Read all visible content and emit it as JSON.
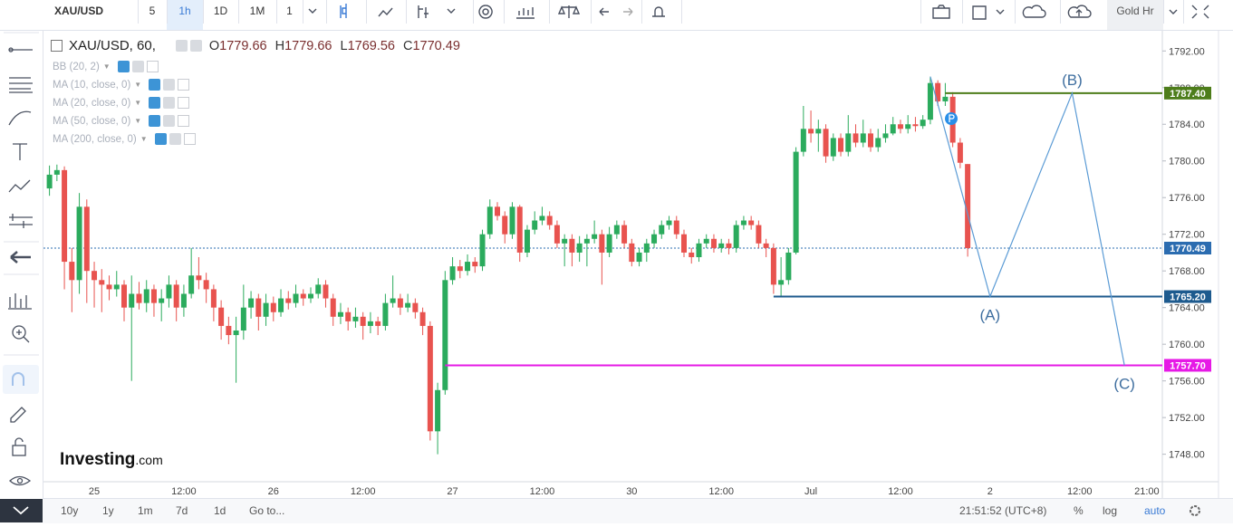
{
  "toolbar": {
    "symbol": "XAU/USD",
    "intervals": [
      "5",
      "1h",
      "1D",
      "1M",
      "1"
    ],
    "active_interval": 1,
    "layout": "Gold Hr"
  },
  "legend": {
    "title": "XAU/USD, 60,",
    "fields": [
      "O",
      "H",
      "L",
      "C"
    ],
    "indicators": [
      "BB (20, 2)",
      "MA (10, close, 0)",
      "MA (20, close, 0)",
      "MA (50, close, 0)",
      "MA (200, close, 0)"
    ]
  },
  "logo": {
    "name": "Investing",
    "suffix": ".com"
  },
  "bottom_bar": {
    "ranges": [
      "10y",
      "1y",
      "1m",
      "7d",
      "1d"
    ],
    "goto": "Go to...",
    "clock": "21:51:52 (UTC+8)",
    "options": [
      "%",
      "log",
      "auto"
    ],
    "active_option": 2
  },
  "chart_data": {
    "type": "candlestick",
    "up_color": "#2bab5d",
    "down_color": "#e8534f",
    "ylim": [
      1745,
      1794.2
    ],
    "yticks": [
      {
        "value": 1748,
        "label": "1748.00"
      },
      {
        "value": 1752,
        "label": "1752.00"
      },
      {
        "value": 1756,
        "label": "1756.00"
      },
      {
        "value": 1760,
        "label": "1760.00"
      },
      {
        "value": 1764,
        "label": "1764.00"
      },
      {
        "value": 1768,
        "label": "1768.00"
      },
      {
        "value": 1772,
        "label": "1772.00"
      },
      {
        "value": 1776,
        "label": "1776.00"
      },
      {
        "value": 1780,
        "label": "1780.00"
      },
      {
        "value": 1784,
        "label": "1784.00"
      },
      {
        "value": 1788,
        "label": "1788.00"
      },
      {
        "value": 1792,
        "label": "1792.00"
      }
    ],
    "grid": false,
    "categories": [
      null,
      null,
      null,
      null,
      null,
      null,
      "25",
      null,
      null,
      null,
      null,
      null,
      null,
      null,
      null,
      null,
      null,
      null,
      "12:00",
      null,
      null,
      null,
      null,
      null,
      null,
      null,
      null,
      null,
      null,
      null,
      "26",
      null,
      null,
      null,
      null,
      null,
      null,
      null,
      null,
      null,
      null,
      null,
      "12:00",
      null,
      null,
      null,
      null,
      null,
      null,
      null,
      null,
      null,
      null,
      null,
      "27",
      null,
      null,
      null,
      null,
      null,
      null,
      null,
      null,
      null,
      null,
      null,
      "12:00",
      null,
      null,
      null,
      null,
      null,
      null,
      null,
      null,
      null,
      null,
      null,
      "30",
      null,
      null,
      null,
      null,
      null,
      null,
      null,
      null,
      null,
      null,
      null,
      "12:00",
      null,
      null,
      null,
      null,
      null,
      null,
      null,
      null,
      null,
      null,
      null,
      "Jul",
      null,
      null,
      null,
      null,
      null,
      null,
      null,
      null,
      null,
      null,
      null,
      "12:00",
      null,
      null,
      null,
      null,
      null,
      null,
      null,
      null,
      null,
      null,
      null,
      "2",
      null,
      null,
      null,
      null,
      null,
      null,
      null,
      null,
      null,
      null,
      null,
      "12:00",
      null,
      null,
      null,
      null,
      null,
      null,
      null,
      null,
      "21:00",
      null,
      null
    ],
    "candles": [
      [
        1777.0,
        1779.5,
        1776.2,
        1778.5
      ],
      [
        1778.5,
        1779.6,
        1777.8,
        1779.0
      ],
      [
        1779.0,
        1779.4,
        1766.0,
        1769.0
      ],
      [
        1769.0,
        1770.5,
        1763.5,
        1767.0
      ],
      [
        1767.0,
        1776.5,
        1765.5,
        1775.0
      ],
      [
        1775.0,
        1775.8,
        1764.5,
        1768.0
      ],
      [
        1768.0,
        1769.0,
        1764.0,
        1767.0
      ],
      [
        1767.0,
        1768.2,
        1763.5,
        1766.5
      ],
      [
        1766.5,
        1767.5,
        1764.8,
        1766.0
      ],
      [
        1766.0,
        1768.0,
        1765.2,
        1766.5
      ],
      [
        1766.5,
        1767.0,
        1762.5,
        1764.0
      ],
      [
        1764.0,
        1767.5,
        1756.0,
        1765.5
      ],
      [
        1765.5,
        1766.8,
        1763.8,
        1764.5
      ],
      [
        1764.5,
        1767.0,
        1763.5,
        1766.0
      ],
      [
        1766.0,
        1766.5,
        1763.0,
        1764.5
      ],
      [
        1764.5,
        1766.0,
        1762.5,
        1765.0
      ],
      [
        1765.0,
        1767.5,
        1764.0,
        1766.5
      ],
      [
        1766.5,
        1767.0,
        1762.5,
        1764.0
      ],
      [
        1764.0,
        1766.5,
        1763.0,
        1765.5
      ],
      [
        1765.5,
        1770.5,
        1765.0,
        1767.5
      ],
      [
        1767.5,
        1769.5,
        1766.0,
        1767.0
      ],
      [
        1767.0,
        1767.8,
        1764.5,
        1766.0
      ],
      [
        1766.0,
        1766.5,
        1762.5,
        1764.0
      ],
      [
        1764.0,
        1764.8,
        1760.5,
        1762.0
      ],
      [
        1762.0,
        1763.0,
        1760.0,
        1761.0
      ],
      [
        1761.0,
        1763.0,
        1755.8,
        1761.5
      ],
      [
        1761.5,
        1766.5,
        1760.5,
        1764.0
      ],
      [
        1764.0,
        1765.8,
        1762.8,
        1765.0
      ],
      [
        1765.0,
        1765.5,
        1761.5,
        1763.0
      ],
      [
        1763.0,
        1765.5,
        1762.0,
        1764.5
      ],
      [
        1764.5,
        1765.2,
        1762.5,
        1763.5
      ],
      [
        1763.5,
        1766.0,
        1763.0,
        1765.0
      ],
      [
        1765.0,
        1765.8,
        1763.8,
        1764.5
      ],
      [
        1764.5,
        1766.5,
        1764.0,
        1765.5
      ],
      [
        1765.5,
        1766.0,
        1764.2,
        1765.0
      ],
      [
        1765.0,
        1766.2,
        1764.5,
        1765.5
      ],
      [
        1765.5,
        1767.2,
        1765.0,
        1766.5
      ],
      [
        1766.5,
        1767.0,
        1764.0,
        1765.0
      ],
      [
        1765.0,
        1765.5,
        1762.0,
        1763.0
      ],
      [
        1763.0,
        1764.5,
        1762.2,
        1763.5
      ],
      [
        1763.5,
        1764.0,
        1761.5,
        1762.5
      ],
      [
        1762.5,
        1764.0,
        1761.8,
        1763.0
      ],
      [
        1763.0,
        1763.5,
        1760.5,
        1762.0
      ],
      [
        1762.0,
        1763.5,
        1761.2,
        1762.5
      ],
      [
        1762.5,
        1763.0,
        1761.0,
        1762.0
      ],
      [
        1762.0,
        1765.5,
        1761.5,
        1764.5
      ],
      [
        1764.5,
        1767.5,
        1764.0,
        1765.0
      ],
      [
        1765.0,
        1765.5,
        1763.2,
        1764.0
      ],
      [
        1764.0,
        1765.5,
        1763.5,
        1764.5
      ],
      [
        1764.5,
        1765.0,
        1762.8,
        1763.5
      ],
      [
        1763.5,
        1764.0,
        1761.0,
        1762.0
      ],
      [
        1762.0,
        1762.5,
        1749.5,
        1750.5
      ],
      [
        1750.5,
        1755.8,
        1748.0,
        1755.0
      ],
      [
        1755.0,
        1768.0,
        1754.5,
        1767.0
      ],
      [
        1767.0,
        1769.5,
        1766.5,
        1768.5
      ],
      [
        1768.5,
        1769.2,
        1767.2,
        1768.0
      ],
      [
        1768.0,
        1769.8,
        1767.5,
        1769.0
      ],
      [
        1769.0,
        1769.5,
        1767.8,
        1768.5
      ],
      [
        1768.5,
        1772.5,
        1768.0,
        1772.0
      ],
      [
        1772.0,
        1775.8,
        1771.5,
        1775.0
      ],
      [
        1775.0,
        1775.5,
        1773.5,
        1774.0
      ],
      [
        1774.0,
        1774.5,
        1771.0,
        1772.0
      ],
      [
        1772.0,
        1775.5,
        1771.5,
        1775.0
      ],
      [
        1775.0,
        1775.2,
        1769.0,
        1770.0
      ],
      [
        1770.0,
        1773.0,
        1769.5,
        1772.5
      ],
      [
        1772.5,
        1774.5,
        1772.0,
        1773.5
      ],
      [
        1773.5,
        1775.0,
        1773.0,
        1774.0
      ],
      [
        1774.0,
        1774.5,
        1772.5,
        1773.0
      ],
      [
        1773.0,
        1773.5,
        1770.5,
        1771.0
      ],
      [
        1771.0,
        1772.0,
        1768.5,
        1771.5
      ],
      [
        1771.5,
        1772.0,
        1768.5,
        1770.0
      ],
      [
        1770.0,
        1771.8,
        1769.0,
        1771.0
      ],
      [
        1771.0,
        1772.0,
        1768.5,
        1771.5
      ],
      [
        1771.5,
        1773.5,
        1771.0,
        1772.0
      ],
      [
        1772.0,
        1772.5,
        1766.5,
        1770.0
      ],
      [
        1770.0,
        1772.8,
        1769.5,
        1772.0
      ],
      [
        1772.0,
        1773.5,
        1771.5,
        1773.0
      ],
      [
        1773.0,
        1773.5,
        1770.5,
        1771.0
      ],
      [
        1771.0,
        1771.5,
        1768.5,
        1769.0
      ],
      [
        1769.0,
        1770.5,
        1768.5,
        1770.0
      ],
      [
        1770.0,
        1771.5,
        1769.0,
        1771.0
      ],
      [
        1771.0,
        1772.5,
        1770.5,
        1772.0
      ],
      [
        1772.0,
        1773.5,
        1771.5,
        1773.0
      ],
      [
        1773.0,
        1774.0,
        1772.5,
        1773.5
      ],
      [
        1773.5,
        1774.0,
        1771.5,
        1772.0
      ],
      [
        1772.0,
        1772.5,
        1769.5,
        1770.0
      ],
      [
        1770.0,
        1770.5,
        1768.8,
        1769.5
      ],
      [
        1769.5,
        1771.5,
        1769.0,
        1771.0
      ],
      [
        1771.0,
        1772.0,
        1770.5,
        1771.5
      ],
      [
        1771.5,
        1772.0,
        1770.0,
        1770.5
      ],
      [
        1770.5,
        1771.5,
        1770.0,
        1771.0
      ],
      [
        1771.0,
        1771.5,
        1769.8,
        1770.5
      ],
      [
        1770.5,
        1773.5,
        1770.0,
        1773.0
      ],
      [
        1773.0,
        1774.0,
        1772.5,
        1773.5
      ],
      [
        1773.5,
        1774.0,
        1772.5,
        1773.0
      ],
      [
        1773.0,
        1773.5,
        1770.5,
        1771.0
      ],
      [
        1771.0,
        1771.5,
        1769.5,
        1770.5
      ],
      [
        1770.5,
        1771.0,
        1765.5,
        1766.5
      ],
      [
        1766.5,
        1769.5,
        1765.3,
        1767.0
      ],
      [
        1767.0,
        1770.5,
        1766.5,
        1770.0
      ],
      [
        1770.0,
        1781.5,
        1769.8,
        1781.0
      ],
      [
        1781.0,
        1786.0,
        1780.5,
        1783.5
      ],
      [
        1783.5,
        1785.5,
        1782.0,
        1783.0
      ],
      [
        1783.0,
        1784.5,
        1781.0,
        1783.5
      ],
      [
        1783.5,
        1784.0,
        1779.8,
        1780.5
      ],
      [
        1780.5,
        1783.0,
        1780.0,
        1782.5
      ],
      [
        1782.5,
        1783.0,
        1780.5,
        1781.0
      ],
      [
        1781.0,
        1785.0,
        1780.5,
        1783.0
      ],
      [
        1783.0,
        1784.0,
        1781.5,
        1782.0
      ],
      [
        1782.0,
        1784.5,
        1781.5,
        1783.0
      ],
      [
        1783.0,
        1783.5,
        1781.0,
        1781.5
      ],
      [
        1781.5,
        1783.5,
        1781.0,
        1782.5
      ],
      [
        1782.5,
        1784.0,
        1782.0,
        1783.0
      ],
      [
        1783.0,
        1784.8,
        1782.8,
        1784.0
      ],
      [
        1784.0,
        1784.5,
        1783.0,
        1783.5
      ],
      [
        1783.5,
        1785.0,
        1783.0,
        1784.0
      ],
      [
        1784.0,
        1784.8,
        1783.2,
        1783.8
      ],
      [
        1783.8,
        1785.0,
        1783.5,
        1784.5
      ],
      [
        1784.5,
        1789.2,
        1784.0,
        1788.5
      ],
      [
        1788.5,
        1788.8,
        1786.0,
        1786.5
      ],
      [
        1786.5,
        1788.5,
        1786.0,
        1787.0
      ],
      [
        1787.0,
        1787.5,
        1781.5,
        1782.0
      ],
      [
        1782.0,
        1782.5,
        1779.2,
        1779.8
      ],
      [
        1779.66,
        1779.66,
        1769.56,
        1770.49
      ],
      null,
      null,
      null,
      null,
      null,
      null,
      null,
      null,
      null,
      null,
      null,
      null,
      null,
      null,
      null,
      null,
      null,
      null,
      null,
      null,
      null,
      null,
      null,
      null,
      null,
      null
    ],
    "price_line_color": "#2b6cb0",
    "levels": [
      {
        "value": 1787.4,
        "label": "1787.40",
        "color": "#4d7d1a",
        "start": 120
      },
      {
        "value": 1765.2,
        "label": "1765.20",
        "color": "#1d5a8e",
        "start": 97
      },
      {
        "value": 1757.7,
        "label": "1757.70",
        "color": "#e619e6",
        "start": 53
      }
    ],
    "wave": {
      "color": "#5b9bd5",
      "label_color": "#3e6e9f",
      "points": [
        {
          "index": 118,
          "value": 1789.2
        },
        {
          "index": 126,
          "value": 1765.2,
          "label": "(A)"
        },
        {
          "index": 137,
          "value": 1787.4,
          "label": "(B)"
        },
        {
          "index": 144,
          "value": 1757.7,
          "label": "(C)"
        }
      ]
    }
  }
}
